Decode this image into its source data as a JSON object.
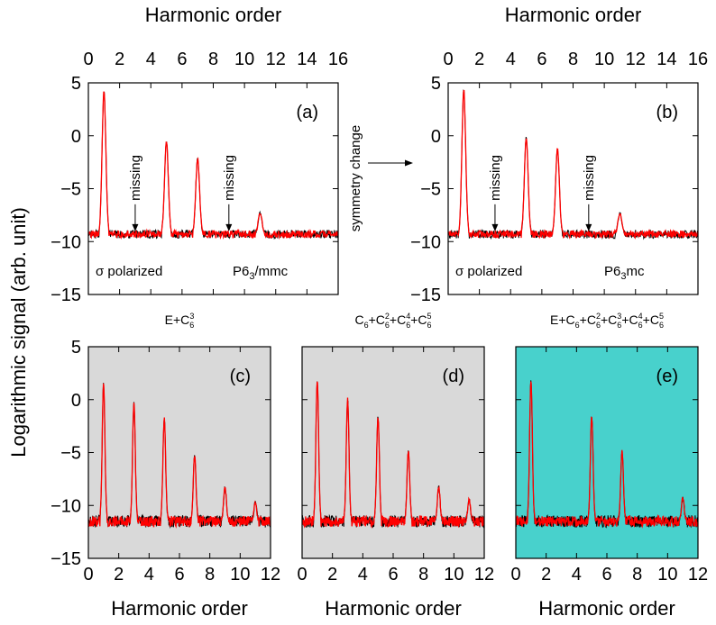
{
  "colors": {
    "signal_dark": "#000000",
    "signal_red": "#ff0000",
    "panel_gray": "#d9d9d9",
    "panel_cyan": "#48d1cc"
  },
  "ylabel": "Logarithmic signal (arb. unit)",
  "top_arrow_label": "symmetry change",
  "chart_data": [
    {
      "id": "a",
      "type": "line",
      "label": "(a)",
      "xlabel": "Harmonic order",
      "xlim": [
        0,
        16
      ],
      "xticks": [
        0,
        2,
        4,
        6,
        8,
        10,
        12,
        14,
        16
      ],
      "ylim": [
        -15,
        5
      ],
      "yticks": [
        -15,
        -10,
        -5,
        0,
        5
      ],
      "baseline": -9.3,
      "noise": 0.35,
      "peaks": [
        {
          "x": 1,
          "y": 4.2
        },
        {
          "x": 5,
          "y": -0.5
        },
        {
          "x": 7,
          "y": -2.1
        },
        {
          "x": 11,
          "y": -7.3
        }
      ],
      "missing": [
        3,
        9
      ],
      "missing_label": "missing",
      "polarization": "σ polarized",
      "space_group": "P6",
      "space_group_sub": "3",
      "space_group_rest": "/mmc",
      "background": "white"
    },
    {
      "id": "b",
      "type": "line",
      "label": "(b)",
      "xlabel": "Harmonic order",
      "xlim": [
        0,
        16
      ],
      "xticks": [
        0,
        2,
        4,
        6,
        8,
        10,
        12,
        14,
        16
      ],
      "ylim": [
        -15,
        5
      ],
      "yticks": [
        -15,
        -10,
        -5,
        0,
        5
      ],
      "baseline": -9.3,
      "noise": 0.35,
      "peaks": [
        {
          "x": 1,
          "y": 4.3
        },
        {
          "x": 5,
          "y": -0.2
        },
        {
          "x": 7,
          "y": -1.2
        },
        {
          "x": 11,
          "y": -7.3
        }
      ],
      "missing": [
        3,
        9
      ],
      "missing_label": "missing",
      "polarization": "σ polarized",
      "space_group": "P6",
      "space_group_sub": "3",
      "space_group_rest": "mc",
      "background": "white"
    },
    {
      "id": "c",
      "type": "line",
      "label": "(c)",
      "xlabel": "Harmonic order",
      "xlim": [
        0,
        12
      ],
      "xticks": [
        0,
        2,
        4,
        6,
        8,
        10,
        12
      ],
      "ylim": [
        -15,
        5
      ],
      "yticks": [
        -15,
        -10,
        -5,
        0,
        5
      ],
      "baseline": -11.5,
      "noise": 0.5,
      "peaks": [
        {
          "x": 1,
          "y": 1.4
        },
        {
          "x": 3,
          "y": -0.4
        },
        {
          "x": 5,
          "y": -1.8
        },
        {
          "x": 7,
          "y": -5.3
        },
        {
          "x": 9,
          "y": -8.3
        },
        {
          "x": 11,
          "y": -9.7
        }
      ],
      "title_parts": [
        [
          "E+C",
          ""
        ],
        [
          "6",
          "sub"
        ],
        [
          "3",
          "sup"
        ]
      ],
      "background": "gray"
    },
    {
      "id": "d",
      "type": "line",
      "label": "(d)",
      "xlabel": "Harmonic order",
      "xlim": [
        0,
        12
      ],
      "xticks": [
        0,
        2,
        4,
        6,
        8,
        10,
        12
      ],
      "ylim": [
        -15,
        5
      ],
      "yticks": [
        -15,
        -10,
        -5,
        0,
        5
      ],
      "baseline": -11.5,
      "noise": 0.5,
      "peaks": [
        {
          "x": 1,
          "y": 1.7
        },
        {
          "x": 3,
          "y": 0.0
        },
        {
          "x": 5,
          "y": -1.6
        },
        {
          "x": 7,
          "y": -4.9
        },
        {
          "x": 9,
          "y": -8.3
        },
        {
          "x": 11,
          "y": -9.5
        }
      ],
      "title_parts": [
        [
          "C",
          ""
        ],
        [
          "6",
          "sub"
        ],
        [
          "+C",
          ""
        ],
        [
          "6",
          "sub"
        ],
        [
          "2",
          "sup"
        ],
        [
          "+C",
          ""
        ],
        [
          "6",
          "sub"
        ],
        [
          "4",
          "sup"
        ],
        [
          "+C",
          ""
        ],
        [
          "6",
          "sub"
        ],
        [
          "5",
          "sup"
        ]
      ],
      "background": "gray"
    },
    {
      "id": "e",
      "type": "line",
      "label": "(e)",
      "xlabel": "Harmonic order",
      "xlim": [
        0,
        12
      ],
      "xticks": [
        0,
        2,
        4,
        6,
        8,
        10,
        12
      ],
      "ylim": [
        -15,
        5
      ],
      "yticks": [
        -15,
        -10,
        -5,
        0,
        5
      ],
      "baseline": -11.5,
      "noise": 0.5,
      "peaks": [
        {
          "x": 1,
          "y": 1.8
        },
        {
          "x": 5,
          "y": -1.6
        },
        {
          "x": 7,
          "y": -4.9
        },
        {
          "x": 11,
          "y": -9.3
        }
      ],
      "title_parts": [
        [
          "E+C",
          ""
        ],
        [
          "6",
          "sub"
        ],
        [
          "+C",
          ""
        ],
        [
          "6",
          "sub"
        ],
        [
          "2",
          "sup"
        ],
        [
          "+C",
          ""
        ],
        [
          "6",
          "sub"
        ],
        [
          "3",
          "sup"
        ],
        [
          "+C",
          ""
        ],
        [
          "6",
          "sub"
        ],
        [
          "4",
          "sup"
        ],
        [
          "+C",
          ""
        ],
        [
          "6",
          "sub"
        ],
        [
          "5",
          "sup"
        ]
      ],
      "background": "cyan"
    }
  ]
}
